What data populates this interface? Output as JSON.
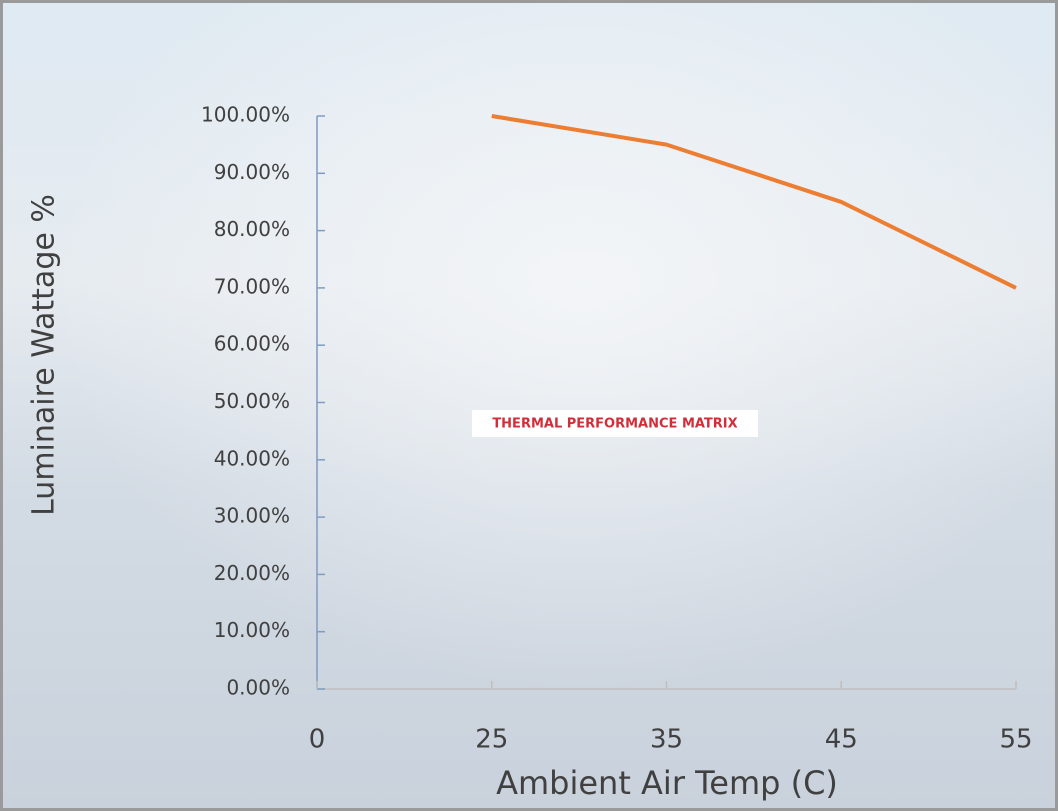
{
  "chart_data": {
    "type": "line",
    "y_label": "Luminaire Wattage %",
    "x_label": "Ambient Air Temp (C)",
    "annotation": "THERMAL PERFORMANCE MATRIX",
    "categories": [
      "0",
      "25",
      "35",
      "45",
      "55"
    ],
    "values": [
      null,
      100,
      95,
      85,
      70
    ],
    "color": "#ed7d31",
    "ylim": [
      0,
      100
    ],
    "yticks": [
      {
        "value": 0,
        "label": "0.00%"
      },
      {
        "value": 10,
        "label": "10.00%"
      },
      {
        "value": 20,
        "label": "20.00%"
      },
      {
        "value": 30,
        "label": "30.00%"
      },
      {
        "value": 40,
        "label": "40.00%"
      },
      {
        "value": 50,
        "label": "50.00%"
      },
      {
        "value": 60,
        "label": "60.00%"
      },
      {
        "value": 70,
        "label": "70.00%"
      },
      {
        "value": 80,
        "label": "80.00%"
      },
      {
        "value": 90,
        "label": "90.00%"
      },
      {
        "value": 100,
        "label": "100.00%"
      }
    ]
  }
}
